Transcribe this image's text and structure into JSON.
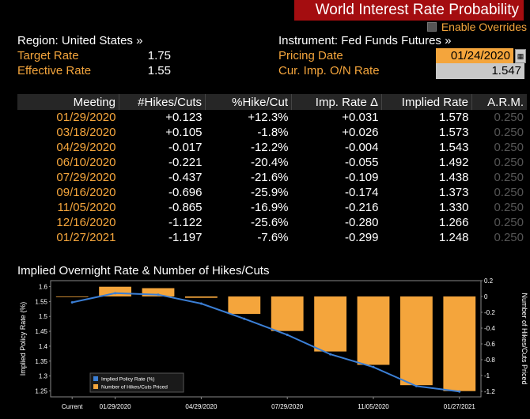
{
  "header": {
    "title": "World Interest Rate Probability",
    "override_label": "Enable Overrides"
  },
  "left": {
    "region_label": "Region: United States »",
    "target_label": "Target Rate",
    "target_value": "1.75",
    "effective_label": "Effective Rate",
    "effective_value": "1.55"
  },
  "right": {
    "instrument_label": "Instrument: Fed Funds Futures »",
    "pricing_label": "Pricing Date",
    "pricing_value": "01/24/2020",
    "imp_label": "Cur. Imp. O/N Rate",
    "imp_value": "1.547"
  },
  "table": {
    "headers": [
      "Meeting",
      "#Hikes/Cuts",
      "%Hike/Cut",
      "Imp. Rate Δ",
      "Implied Rate",
      "A.R.M."
    ],
    "rows": [
      [
        "01/29/2020",
        "+0.123",
        "+12.3%",
        "+0.031",
        "1.578",
        "0.250"
      ],
      [
        "03/18/2020",
        "+0.105",
        "-1.8%",
        "+0.026",
        "1.573",
        "0.250"
      ],
      [
        "04/29/2020",
        "-0.017",
        "-12.2%",
        "-0.004",
        "1.543",
        "0.250"
      ],
      [
        "06/10/2020",
        "-0.221",
        "-20.4%",
        "-0.055",
        "1.492",
        "0.250"
      ],
      [
        "07/29/2020",
        "-0.437",
        "-21.6%",
        "-0.109",
        "1.438",
        "0.250"
      ],
      [
        "09/16/2020",
        "-0.696",
        "-25.9%",
        "-0.174",
        "1.373",
        "0.250"
      ],
      [
        "11/05/2020",
        "-0.865",
        "-16.9%",
        "-0.216",
        "1.330",
        "0.250"
      ],
      [
        "12/16/2020",
        "-1.122",
        "-25.6%",
        "-0.280",
        "1.266",
        "0.250"
      ],
      [
        "01/27/2021",
        "-1.197",
        "-7.6%",
        "-0.299",
        "1.248",
        "0.250"
      ]
    ]
  },
  "chart_title": "Implied Overnight Rate & Number of Hikes/Cuts",
  "colors": {
    "accent": "#f4a53c",
    "title_bg": "#a40d10",
    "line": "#3b7fd6"
  },
  "chart_data": {
    "type": "bar+line",
    "title": "Implied Overnight Rate & Number of Hikes/Cuts",
    "categories": [
      "Current",
      "01/29/2020",
      "03/18/2020",
      "04/29/2020",
      "06/10/2020",
      "07/29/2020",
      "09/16/2020",
      "11/05/2020",
      "12/16/2020",
      "01/27/2021"
    ],
    "x_tick_labels": [
      "Current",
      "01/29/2020",
      "04/29/2020",
      "07/29/2020",
      "11/05/2020",
      "01/27/2021"
    ],
    "x_tick_index": [
      0,
      1,
      3,
      5,
      7,
      9
    ],
    "series": [
      {
        "name": "Implied Policy Rate (%)",
        "axis": "left",
        "kind": "line",
        "values": [
          1.547,
          1.578,
          1.573,
          1.543,
          1.492,
          1.438,
          1.373,
          1.33,
          1.266,
          1.248
        ]
      },
      {
        "name": "Number of Hikes/Cuts Priced",
        "axis": "right",
        "kind": "bar",
        "values": [
          0.0,
          0.123,
          0.105,
          -0.017,
          -0.221,
          -0.437,
          -0.696,
          -0.865,
          -1.122,
          -1.197
        ]
      }
    ],
    "ylabel": "Implied Policy Rate (%)",
    "ylim": [
      1.23,
      1.62
    ],
    "yticks": [
      1.25,
      1.3,
      1.35,
      1.4,
      1.45,
      1.5,
      1.55,
      1.6
    ],
    "y2label": "Number of Hikes/Cuts Priced",
    "y2lim": [
      -1.27,
      0.2
    ],
    "y2ticks": [
      -1.2,
      -1.0,
      -0.8,
      -0.6,
      -0.4,
      -0.2,
      0.0,
      0.2
    ],
    "legend": "bottom-left"
  }
}
